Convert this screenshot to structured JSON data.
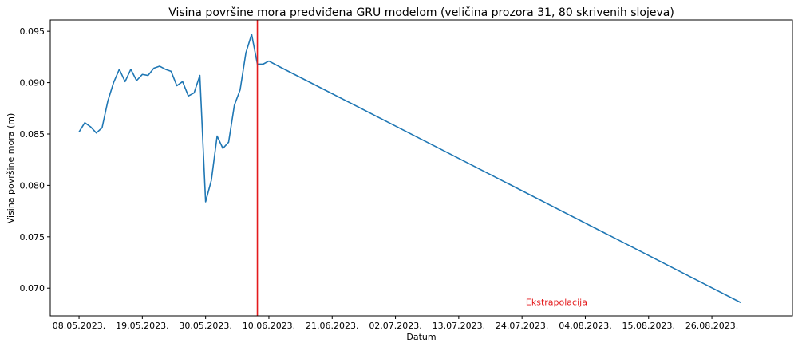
{
  "chart_data": {
    "type": "line",
    "title": "Visina površine mora predviđena GRU modelom (veličina prozora 31, 80 skrivenih slojeva)",
    "xlabel": "Datum",
    "ylabel": "Visina površine mora (m)",
    "x_tick_labels": [
      "08.05.2023.",
      "19.05.2023.",
      "30.05.2023.",
      "10.06.2023.",
      "21.06.2023.",
      "02.07.2023.",
      "13.07.2023.",
      "24.07.2023.",
      "04.08.2023.",
      "15.08.2023.",
      "26.08.2023."
    ],
    "x_tick_dates": [
      "2023-05-08",
      "2023-05-19",
      "2023-05-30",
      "2023-06-10",
      "2023-06-21",
      "2023-07-02",
      "2023-07-13",
      "2023-07-24",
      "2023-08-04",
      "2023-08-15",
      "2023-08-26"
    ],
    "y_tick_labels": [
      "0.070",
      "0.075",
      "0.080",
      "0.085",
      "0.090",
      "0.095"
    ],
    "y_ticks": [
      0.07,
      0.075,
      0.08,
      0.085,
      0.09,
      0.095
    ],
    "xlim": [
      "2023-05-03",
      "2023-09-09"
    ],
    "ylim": [
      0.0673,
      0.0961
    ],
    "grid": false,
    "series": [
      {
        "color": "#1f77b4",
        "points": [
          [
            "2023-05-08",
            0.0852
          ],
          [
            "2023-05-09",
            0.0861
          ],
          [
            "2023-05-10",
            0.0857
          ],
          [
            "2023-05-11",
            0.0851
          ],
          [
            "2023-05-12",
            0.0856
          ],
          [
            "2023-05-13",
            0.0882
          ],
          [
            "2023-05-14",
            0.09
          ],
          [
            "2023-05-15",
            0.0913
          ],
          [
            "2023-05-16",
            0.0901
          ],
          [
            "2023-05-17",
            0.0913
          ],
          [
            "2023-05-18",
            0.0902
          ],
          [
            "2023-05-19",
            0.0908
          ],
          [
            "2023-05-20",
            0.0907
          ],
          [
            "2023-05-21",
            0.0914
          ],
          [
            "2023-05-22",
            0.0916
          ],
          [
            "2023-05-23",
            0.0913
          ],
          [
            "2023-05-24",
            0.0911
          ],
          [
            "2023-05-25",
            0.0897
          ],
          [
            "2023-05-26",
            0.0901
          ],
          [
            "2023-05-27",
            0.0887
          ],
          [
            "2023-05-28",
            0.089
          ],
          [
            "2023-05-29",
            0.0907
          ],
          [
            "2023-05-30",
            0.0784
          ],
          [
            "2023-05-31",
            0.0805
          ],
          [
            "2023-06-01",
            0.0848
          ],
          [
            "2023-06-02",
            0.0836
          ],
          [
            "2023-06-03",
            0.0842
          ],
          [
            "2023-06-04",
            0.0878
          ],
          [
            "2023-06-05",
            0.0893
          ],
          [
            "2023-06-06",
            0.0929
          ],
          [
            "2023-06-07",
            0.0947
          ],
          [
            "2023-06-08",
            0.0918
          ],
          [
            "2023-06-09",
            0.0918
          ],
          [
            "2023-06-10",
            0.0921
          ],
          [
            "2023-06-12",
            0.0915
          ],
          [
            "2023-08-31",
            0.0686
          ]
        ]
      }
    ],
    "vertical_line": {
      "date": "2023-06-08",
      "color": "#e41a1c"
    },
    "annotations": [
      {
        "text": "Ekstrapolacija",
        "date": "2023-07-30",
        "value": 0.0686,
        "color": "#e41a1c"
      }
    ]
  }
}
